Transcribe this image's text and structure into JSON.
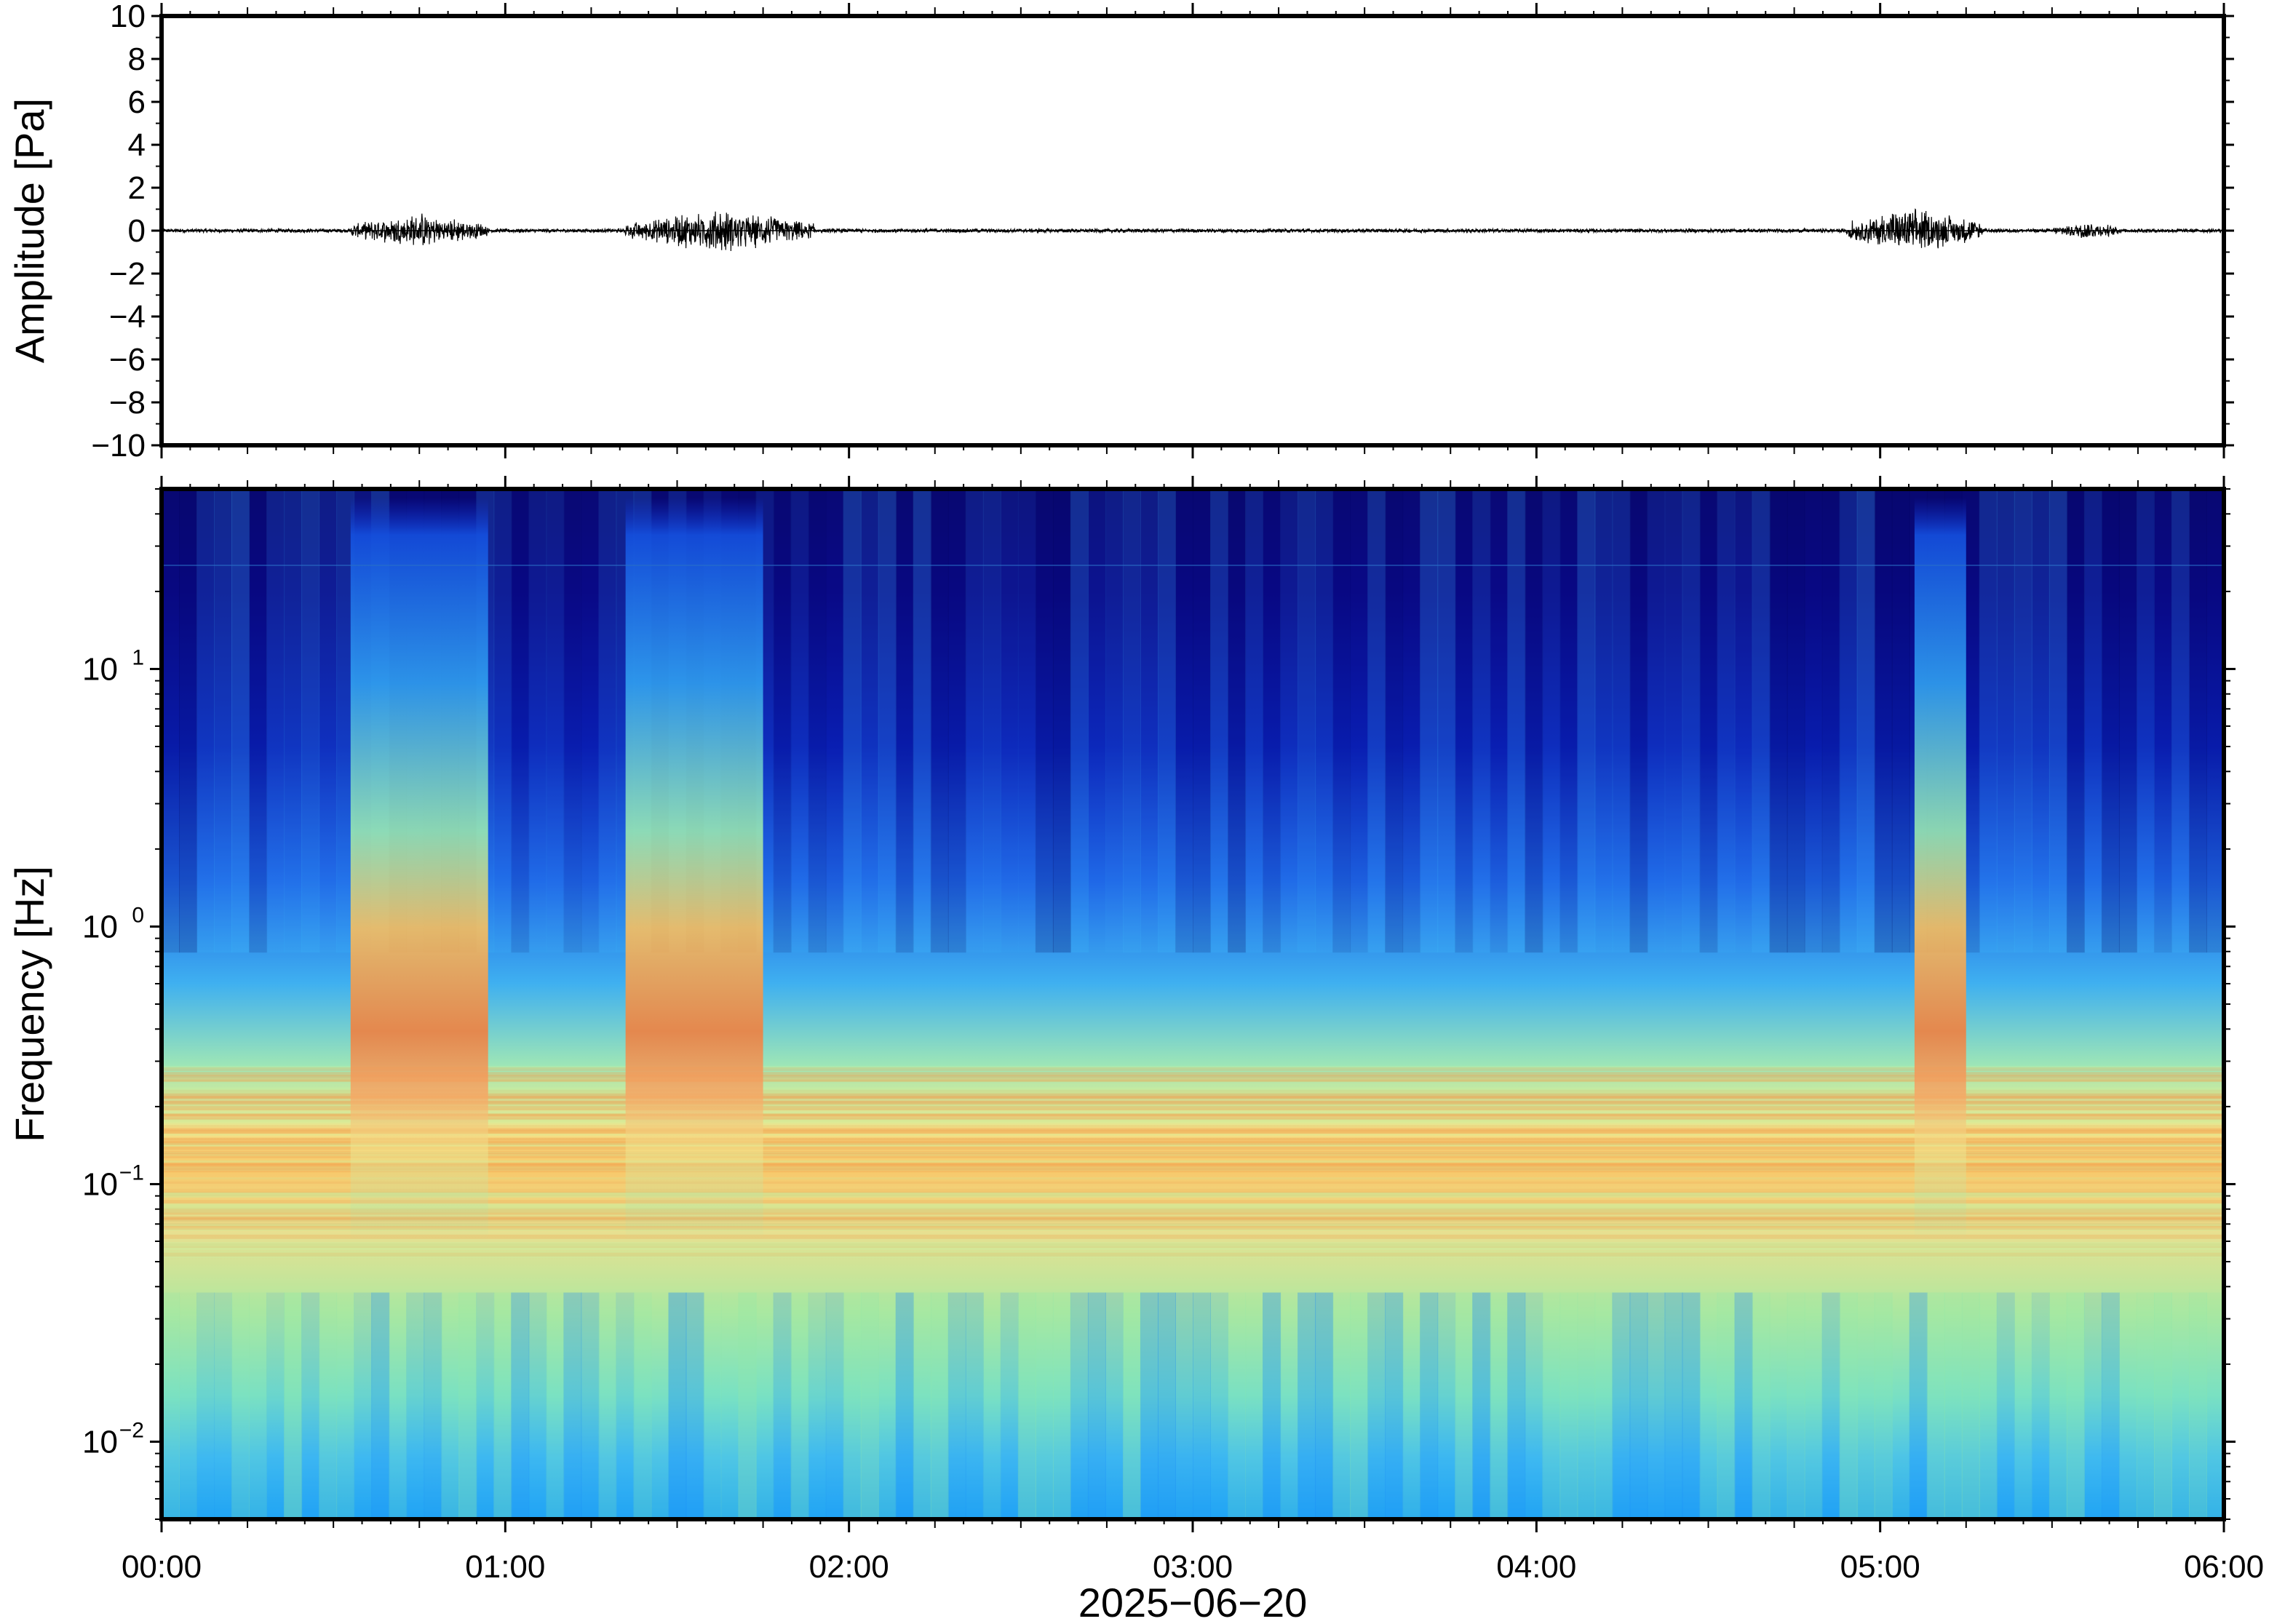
{
  "chart_data": [
    {
      "type": "line",
      "ylabel": "Amplitude [Pa]",
      "ylim": [
        -10,
        10
      ],
      "yticks": [
        "10",
        "8",
        "6",
        "4",
        "2",
        "0",
        "−2",
        "−4",
        "−6",
        "−8",
        "−10"
      ],
      "xlim_hours": [
        0,
        6
      ],
      "grid": false,
      "bursts": [
        {
          "t_start": 0.55,
          "t_end": 0.95,
          "peak": 0.9
        },
        {
          "t_start": 1.35,
          "t_end": 1.9,
          "peak": 1.1
        },
        {
          "t_start": 4.9,
          "t_end": 5.3,
          "peak": 1.2
        },
        {
          "t_start": 5.5,
          "t_end": 5.7,
          "peak": 0.5
        }
      ],
      "background_amplitude": 0.08
    },
    {
      "type": "heatmap",
      "ylabel": "Frequency [Hz]",
      "yscale": "log",
      "ylim_hz": [
        0.005,
        50
      ],
      "ytick_labels": [
        {
          "base": "10",
          "exp": "1",
          "value": 10
        },
        {
          "base": "10",
          "exp": "0",
          "value": 1
        },
        {
          "base": "10",
          "exp": "−1",
          "value": 0.1
        },
        {
          "base": "10",
          "exp": "−2",
          "value": 0.01
        }
      ],
      "xlabel": "2025−06−20",
      "xtick_labels": [
        "00:00",
        "01:00",
        "02:00",
        "03:00",
        "04:00",
        "05:00",
        "06:00"
      ],
      "xlim_hours": [
        0,
        6
      ],
      "colormap": "jet",
      "high_energy_intervals_hours": [
        [
          0.55,
          0.95
        ],
        [
          1.35,
          1.75
        ],
        [
          5.1,
          5.25
        ]
      ],
      "microseism_band_hz": [
        0.05,
        0.3
      ]
    }
  ],
  "colors": {
    "frame": "#000000",
    "low": "#00007f",
    "high": "#ff4000"
  }
}
